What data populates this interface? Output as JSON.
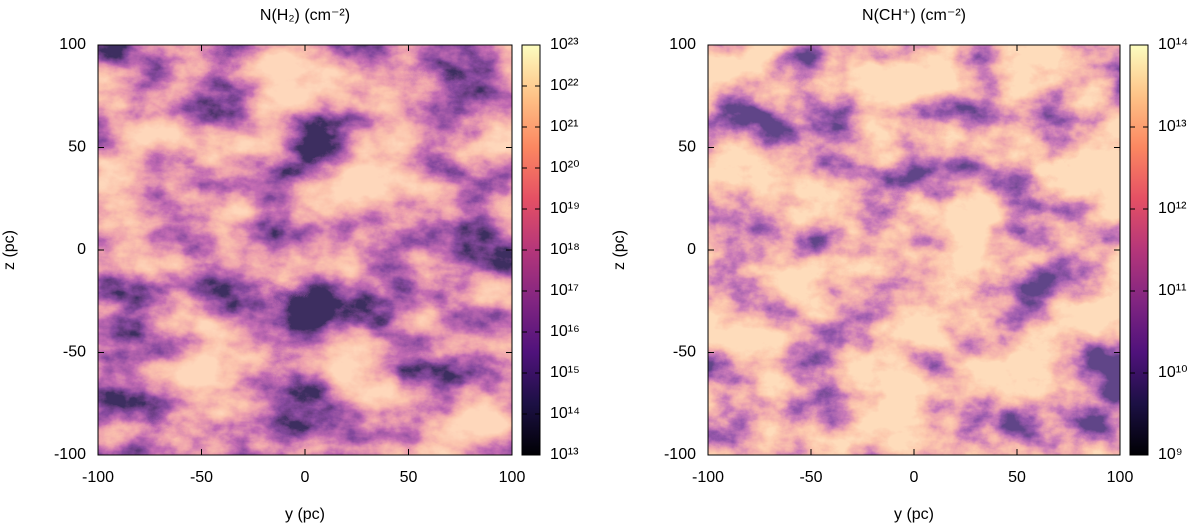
{
  "chart_data": [
    {
      "type": "heatmap",
      "title": "N(H₂)  (cm⁻²)",
      "xlabel": "y (pc)",
      "ylabel": "z (pc)",
      "xlim": [
        -100,
        100
      ],
      "xticks": [
        -100,
        -50,
        0,
        50,
        100
      ],
      "ylim": [
        -100,
        100
      ],
      "yticks": [
        -100,
        -50,
        0,
        50,
        100
      ],
      "colormap": "magma",
      "color_log": true,
      "clim": [
        10000000000000.0,
        1e+23
      ],
      "cticks": [
        {
          "value": 10000000000000.0,
          "label": "10¹³"
        },
        {
          "value": 100000000000000.0,
          "label": "10¹⁴"
        },
        {
          "value": 1000000000000000.0,
          "label": "10¹⁵"
        },
        {
          "value": 1e+16,
          "label": "10¹⁶"
        },
        {
          "value": 1e+17,
          "label": "10¹⁷"
        },
        {
          "value": 1e+18,
          "label": "10¹⁸"
        },
        {
          "value": 1e+19,
          "label": "10¹⁹"
        },
        {
          "value": 1e+20,
          "label": "10²⁰"
        },
        {
          "value": 1e+21,
          "label": "10²¹"
        },
        {
          "value": 1e+22,
          "label": "10²²"
        },
        {
          "value": 1e+23,
          "label": "10²³"
        }
      ]
    },
    {
      "type": "heatmap",
      "title": "N(CH⁺)  (cm⁻²)",
      "xlabel": "y (pc)",
      "ylabel": "z (pc)",
      "xlim": [
        -100,
        100
      ],
      "xticks": [
        -100,
        -50,
        0,
        50,
        100
      ],
      "ylim": [
        -100,
        100
      ],
      "yticks": [
        -100,
        -50,
        0,
        50,
        100
      ],
      "colormap": "magma",
      "color_log": true,
      "clim": [
        1000000000.0,
        100000000000000.0
      ],
      "cticks": [
        {
          "value": 1000000000.0,
          "label": "10⁹"
        },
        {
          "value": 10000000000.0,
          "label": "10¹⁰"
        },
        {
          "value": 100000000000.0,
          "label": "10¹¹"
        },
        {
          "value": 1000000000000.0,
          "label": "10¹²"
        },
        {
          "value": 10000000000000.0,
          "label": "10¹³"
        },
        {
          "value": 100000000000000.0,
          "label": "10¹⁴"
        }
      ]
    }
  ]
}
